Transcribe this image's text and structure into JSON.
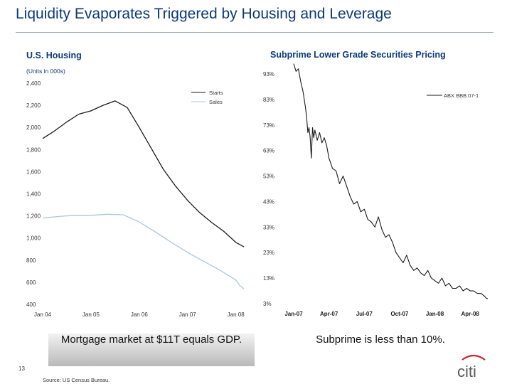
{
  "slide": {
    "title": "Liquidity Evaporates Triggered by Housing and Leverage",
    "page_number": "13",
    "source": "Source: US Census Bureau.",
    "logo_text": "citi",
    "callouts": {
      "left": "Mortgage market at $11T equals GDP.",
      "right": "Subprime is less than 10%."
    }
  },
  "colors": {
    "title": "#0b3a7a",
    "starts": "#1a1a1a",
    "sales": "#a9c8de",
    "abx": "#1a1a1a",
    "logo": "#5a5a5a",
    "logo_arc": "#d2232a"
  },
  "chart_data": [
    {
      "type": "line",
      "title": "U.S. Housing",
      "subtitle": "(Units in 000s)",
      "x_tick_labels": [
        "Jan 04",
        "Jan 05",
        "Jan 06",
        "Jan 07",
        "Jan 08"
      ],
      "x_range": [
        "Jan 04",
        "Mar 08"
      ],
      "y_tick_labels": [
        "400",
        "600",
        "800",
        "1,000",
        "1,200",
        "1,400",
        "1,600",
        "1,800",
        "2,000",
        "2,200",
        "2,400"
      ],
      "ylim": [
        400,
        2400
      ],
      "legend_position": "top-right",
      "grid": false,
      "series": [
        {
          "name": "Starts",
          "x": [
            0,
            3,
            6,
            9,
            12,
            15,
            18,
            21,
            24,
            27,
            30,
            33,
            36,
            39,
            42,
            45,
            48,
            50
          ],
          "values": [
            1900,
            1970,
            2050,
            2120,
            2150,
            2200,
            2240,
            2180,
            2000,
            1810,
            1620,
            1470,
            1340,
            1230,
            1140,
            1060,
            960,
            920
          ]
        },
        {
          "name": "Sales",
          "x": [
            0,
            4,
            8,
            12,
            16,
            20,
            24,
            28,
            32,
            36,
            40,
            44,
            48,
            49,
            50
          ],
          "values": [
            1180,
            1195,
            1205,
            1205,
            1215,
            1210,
            1145,
            1055,
            960,
            870,
            790,
            710,
            620,
            570,
            540
          ]
        }
      ]
    },
    {
      "type": "line",
      "title": "Subprime Lower Grade Securities Pricing",
      "x_tick_labels": [
        "Jan-07",
        "Apr-07",
        "Jul-07",
        "Oct-07",
        "Jan-08",
        "Apr-08"
      ],
      "x_range": [
        "Jan-07",
        "May-08"
      ],
      "y_tick_labels": [
        "3%",
        "13%",
        "23%",
        "33%",
        "43%",
        "53%",
        "63%",
        "73%",
        "83%",
        "93%"
      ],
      "ylim": [
        3,
        93
      ],
      "legend_position": "top-right",
      "grid": false,
      "series": [
        {
          "name": "ABX BBB 07-1",
          "x": [
            0.0,
            0.2,
            0.4,
            0.6,
            0.8,
            1.0,
            1.1,
            1.2,
            1.3,
            1.4,
            1.5,
            1.6,
            1.7,
            1.8,
            2.0,
            2.2,
            2.4,
            2.6,
            2.8,
            3.0,
            3.3,
            3.6,
            3.9,
            4.2,
            4.5,
            4.8,
            5.1,
            5.4,
            5.7,
            6.0,
            6.3,
            6.6,
            6.9,
            7.2,
            7.5,
            7.8,
            8.1,
            8.4,
            8.7,
            9.0,
            9.3,
            9.6,
            9.9,
            10.2,
            10.5,
            10.8,
            11.1,
            11.4,
            11.7,
            12.0,
            12.3,
            12.6,
            12.9,
            13.2,
            13.5,
            13.8,
            14.1,
            14.4,
            14.7,
            15.0,
            15.3,
            15.6,
            15.9,
            16.2,
            16.4,
            16.5
          ],
          "values": [
            97,
            94,
            95,
            90,
            86,
            80,
            76,
            70,
            72,
            68,
            60,
            72,
            68,
            71,
            67,
            70,
            66,
            68,
            65,
            60,
            56,
            55,
            50,
            53,
            49,
            45,
            42,
            43,
            39,
            40,
            36,
            35,
            33,
            37,
            32,
            29,
            30,
            27,
            23,
            21,
            19,
            22,
            18,
            16,
            17,
            15,
            14,
            16,
            13,
            12,
            11,
            13,
            10,
            11,
            9,
            9,
            10,
            8,
            9,
            8,
            8,
            7,
            7,
            6,
            5,
            5
          ]
        }
      ]
    }
  ]
}
